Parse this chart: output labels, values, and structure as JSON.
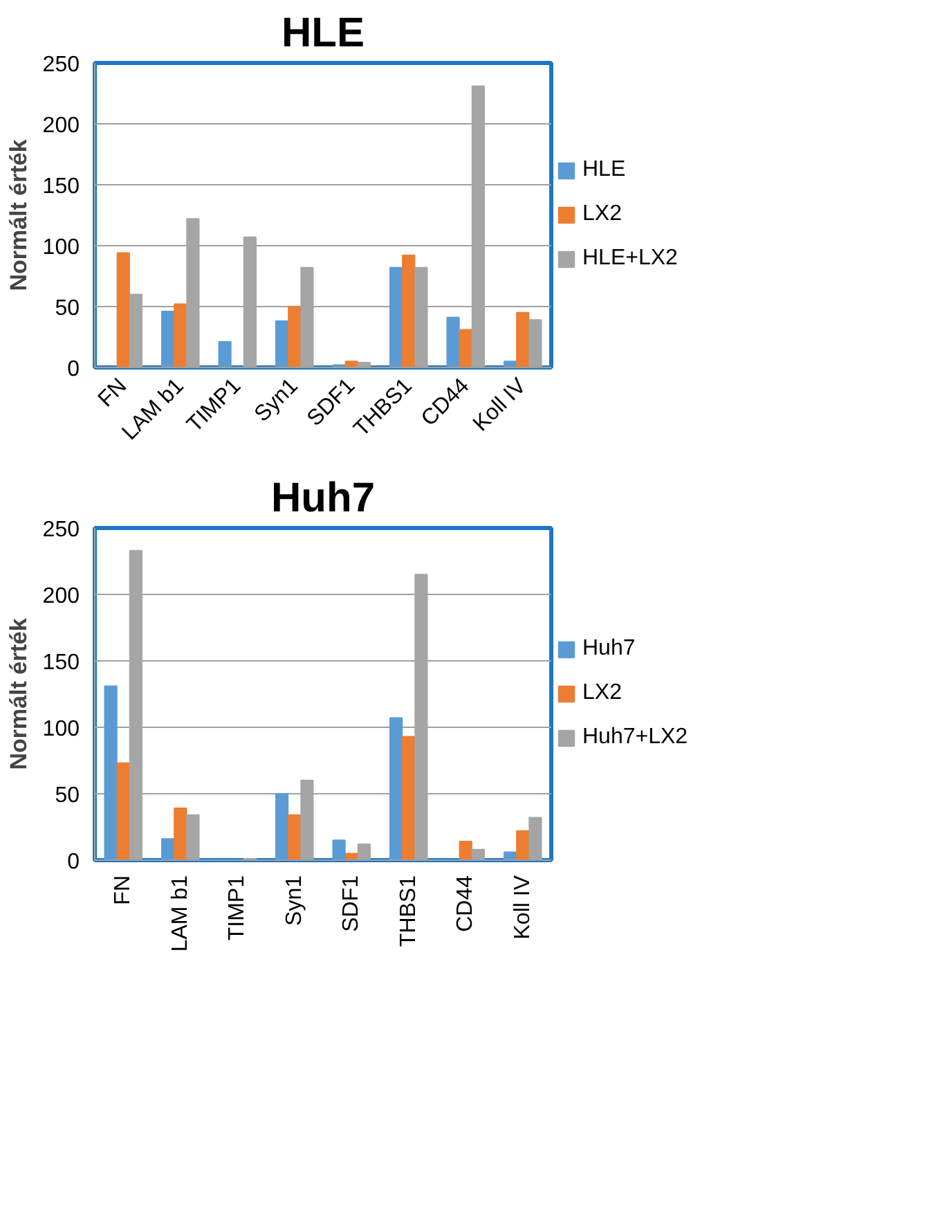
{
  "chart_data": [
    {
      "type": "bar",
      "title": "HLE",
      "ylabel": "Normált érték",
      "categories": [
        "FN",
        "LAM b1",
        "TIMP1",
        "Syn1",
        "SDF1",
        "THBS1",
        "CD44",
        "Koll IV"
      ],
      "ylim": [
        0,
        250
      ],
      "yticks": [
        0,
        50,
        100,
        150,
        200,
        250
      ],
      "grid": "y",
      "legend": "right",
      "series": [
        {
          "name": "HLE",
          "color": "#5b9bd5",
          "values": [
            0,
            46,
            21,
            38,
            2,
            82,
            41,
            5
          ]
        },
        {
          "name": "LX2",
          "color": "#ed7d31",
          "values": [
            94,
            52,
            0,
            50,
            5,
            92,
            31,
            45
          ]
        },
        {
          "name": "HLE+LX2",
          "color": "#a5a5a5",
          "values": [
            60,
            122,
            107,
            82,
            4,
            82,
            231,
            39
          ]
        }
      ]
    },
    {
      "type": "bar",
      "title": "Huh7",
      "ylabel": "Normált érték",
      "categories": [
        "FN",
        "LAM b1",
        "TIMP1",
        "Syn1",
        "SDF1",
        "THBS1",
        "CD44",
        "Koll IV"
      ],
      "ylim": [
        0,
        250
      ],
      "yticks": [
        0,
        50,
        100,
        150,
        200,
        250
      ],
      "grid": "y",
      "legend": "right",
      "series": [
        {
          "name": "Huh7",
          "color": "#5b9bd5",
          "values": [
            131,
            16,
            0,
            50,
            15,
            107,
            0,
            6
          ]
        },
        {
          "name": "LX2",
          "color": "#ed7d31",
          "values": [
            73,
            39,
            0,
            34,
            5,
            93,
            14,
            22
          ]
        },
        {
          "name": "Huh7+LX2",
          "color": "#a5a5a5",
          "values": [
            233,
            34,
            1,
            60,
            12,
            215,
            8,
            32
          ]
        }
      ]
    }
  ]
}
